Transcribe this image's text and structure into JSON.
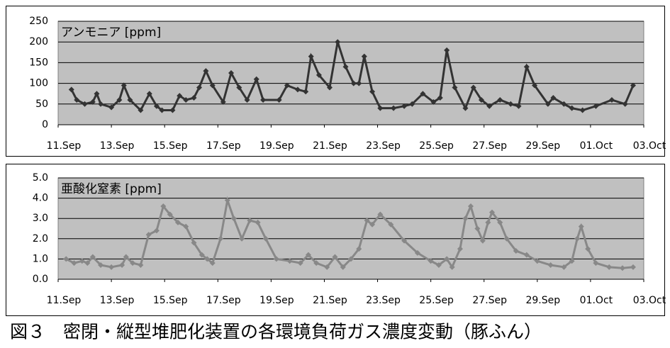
{
  "chart_data": [
    {
      "type": "line",
      "title": "アンモニア [ppm]",
      "color": "#333333",
      "x": [
        0.5,
        0.7,
        1.0,
        1.3,
        1.45,
        1.6,
        2.0,
        2.3,
        2.47,
        2.7,
        3.1,
        3.43,
        3.7,
        3.9,
        4.3,
        4.56,
        4.8,
        5.1,
        5.3,
        5.55,
        5.8,
        6.2,
        6.5,
        6.8,
        7.1,
        7.45,
        7.7,
        8.3,
        8.6,
        9.0,
        9.3,
        9.5,
        9.8,
        10.2,
        10.5,
        10.8,
        11.1,
        11.3,
        11.5,
        11.8,
        12.1,
        12.6,
        13.0,
        13.3,
        13.7,
        14.1,
        14.35,
        14.6,
        14.9,
        15.3,
        15.6,
        15.9,
        16.2,
        16.6,
        17.0,
        17.3,
        17.6,
        17.9,
        18.4,
        18.6,
        19.0,
        19.3,
        19.7,
        20.2,
        20.8,
        21.3,
        21.6
      ],
      "values": [
        85,
        60,
        50,
        55,
        75,
        50,
        42,
        60,
        95,
        60,
        35,
        75,
        45,
        35,
        35,
        70,
        60,
        65,
        90,
        130,
        95,
        55,
        125,
        90,
        60,
        110,
        60,
        60,
        95,
        85,
        80,
        165,
        120,
        90,
        200,
        140,
        100,
        100,
        165,
        80,
        40,
        40,
        45,
        50,
        75,
        55,
        65,
        180,
        90,
        40,
        90,
        60,
        45,
        60,
        50,
        45,
        140,
        95,
        50,
        65,
        50,
        40,
        35,
        45,
        60,
        50,
        95
      ],
      "ylim": [
        0,
        250
      ],
      "yticks": [
        0,
        50,
        100,
        150,
        200,
        250
      ],
      "xlim": [
        0,
        22
      ],
      "xticks": [
        {
          "value": 0,
          "label": "11.Sep"
        },
        {
          "value": 2,
          "label": "13.Sep"
        },
        {
          "value": 4,
          "label": "15.Sep"
        },
        {
          "value": 6,
          "label": "17.Sep"
        },
        {
          "value": 8,
          "label": "19.Sep"
        },
        {
          "value": 10,
          "label": "21.Sep"
        },
        {
          "value": 12,
          "label": "23.Sep"
        },
        {
          "value": 14,
          "label": "25.Sep"
        },
        {
          "value": 16,
          "label": "27.Sep"
        },
        {
          "value": 18,
          "label": "29.Sep"
        },
        {
          "value": 20,
          "label": "01.Oct"
        },
        {
          "value": 22,
          "label": "03.Oct"
        }
      ],
      "grid": true,
      "background": "#c0c0c0"
    },
    {
      "type": "line",
      "title": "亜酸化窒素 [ppm]",
      "color": "#888888",
      "x": [
        0.3,
        0.6,
        0.9,
        1.1,
        1.3,
        1.6,
        2.0,
        2.4,
        2.55,
        2.8,
        3.1,
        3.4,
        3.7,
        3.95,
        4.2,
        4.5,
        4.8,
        5.1,
        5.4,
        5.6,
        5.8,
        6.1,
        6.36,
        6.6,
        6.9,
        7.2,
        7.5,
        7.8,
        8.2,
        8.7,
        9.1,
        9.4,
        9.7,
        10.1,
        10.4,
        10.7,
        11.0,
        11.3,
        11.6,
        11.8,
        12.1,
        12.5,
        13.0,
        13.5,
        14.0,
        14.3,
        14.6,
        14.8,
        15.1,
        15.3,
        15.5,
        15.75,
        15.95,
        16.15,
        16.3,
        16.6,
        16.85,
        17.2,
        17.6,
        18.0,
        18.5,
        19.0,
        19.3,
        19.5,
        19.65,
        19.9,
        20.2,
        20.7,
        21.2,
        21.6
      ],
      "values": [
        1.0,
        0.8,
        0.9,
        0.8,
        1.1,
        0.7,
        0.6,
        0.7,
        1.1,
        0.8,
        0.7,
        2.2,
        2.4,
        3.6,
        3.2,
        2.8,
        2.6,
        1.8,
        1.2,
        1.0,
        0.8,
        2.0,
        3.9,
        3.0,
        2.0,
        2.9,
        2.8,
        2.0,
        1.0,
        0.9,
        0.8,
        1.2,
        0.8,
        0.6,
        1.1,
        0.6,
        1.0,
        1.5,
        2.9,
        2.7,
        3.2,
        2.7,
        1.9,
        1.3,
        0.9,
        0.7,
        1.0,
        0.6,
        1.5,
        3.0,
        3.6,
        2.5,
        1.9,
        2.8,
        3.3,
        2.8,
        2.0,
        1.4,
        1.2,
        0.9,
        0.7,
        0.6,
        0.9,
        2.0,
        2.6,
        1.5,
        0.8,
        0.6,
        0.55,
        0.6
      ],
      "ylim": [
        0,
        5
      ],
      "yticks": [
        {
          "value": 0,
          "label": "0.0"
        },
        {
          "value": 1,
          "label": "1.0"
        },
        {
          "value": 2,
          "label": "2.0"
        },
        {
          "value": 3,
          "label": "3.0"
        },
        {
          "value": 4,
          "label": "4.0"
        },
        {
          "value": 5,
          "label": "5.0"
        }
      ],
      "xlim": [
        0,
        22
      ],
      "xticks": [
        {
          "value": 0,
          "label": "11.Sep"
        },
        {
          "value": 2,
          "label": "13.Sep"
        },
        {
          "value": 4,
          "label": "15.Sep"
        },
        {
          "value": 6,
          "label": "17.Sep"
        },
        {
          "value": 8,
          "label": "19.Sep"
        },
        {
          "value": 10,
          "label": "21.Sep"
        },
        {
          "value": 12,
          "label": "23.Sep"
        },
        {
          "value": 14,
          "label": "25.Sep"
        },
        {
          "value": 16,
          "label": "27.Sep"
        },
        {
          "value": 18,
          "label": "29.Sep"
        },
        {
          "value": 20,
          "label": "01.Oct"
        },
        {
          "value": 22,
          "label": "03.Oct"
        }
      ],
      "grid": true,
      "background": "#c0c0c0"
    }
  ],
  "caption": "図３　密閉・縦型堆肥化装置の各環境負荷ガス濃度変動（豚ふん）"
}
